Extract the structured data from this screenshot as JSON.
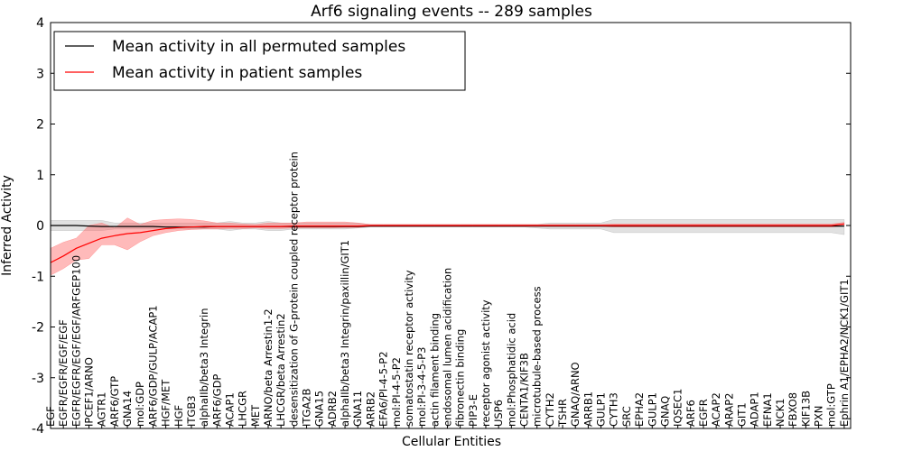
{
  "chart_data": {
    "type": "line",
    "title": "Arf6 signaling events -- 289 samples",
    "xlabel": "Cellular Entities",
    "ylabel": "Inferred Activity",
    "ylim": [
      -4,
      4
    ],
    "yticks": [
      -4,
      -3,
      -2,
      -1,
      0,
      1,
      2,
      3,
      4
    ],
    "legend": {
      "position": "top-left",
      "entries": [
        {
          "label": "Mean activity in all permuted samples",
          "color": "#000000"
        },
        {
          "label": "Mean activity in patient samples",
          "color": "#ff0000"
        }
      ]
    },
    "categories": [
      "EGF",
      "EGFR/EGFR/EGF/EGF",
      "EGFR/EGFR/EGF/EGF/ARFGEP100",
      "IPCEF1/ARNO",
      "AGTR1",
      "ARF6/GTP",
      "GNA14",
      "mol:GDP",
      "ARF6/GDP/GULP/ACAP1",
      "HGF/MET",
      "HGF",
      "ITGB3",
      "alphaIIb/beta3 Integrin",
      "ARF6/GDP",
      "ACAP1",
      "LHCGR",
      "MET",
      "ARNO/beta Arrestin1-2",
      "LHCGR/beta Arrestin2",
      "desensitization of G-protein coupled receptor protein",
      "ITGA2B",
      "GNA15",
      "ADRB2",
      "alphaIIb/beta3 Integrin/paxillin/GIT1",
      "GNA11",
      "ARRB2",
      "EFA6/PI-4-5-P2",
      "mol:PI-4-5-P2",
      "somatostatin receptor activity",
      "mol:PI-3-4-5-P3",
      "actin filament binding",
      "endosomal lumen acidification",
      "fibronectin binding",
      "PIP3-E",
      "receptor agonist activity",
      "USP6",
      "mol:Phosphatidic acid",
      "CENTA1/KIF3B",
      "microtubule-based process",
      "CYTH2",
      "TSHR",
      "GNAQ/ARNO",
      "ARRB1",
      "GULP1",
      "CYTH3",
      "SRC",
      "EPHA2",
      "GULP1",
      "GNAQ",
      "IQSEC1",
      "ARF6",
      "EGFR",
      "ACAP2",
      "ARAP2",
      "GIT1",
      "ADAP1",
      "EFNA1",
      "NCK1",
      "FBXO8",
      "KIF13B",
      "PXN",
      "mol:GTP",
      "Ephrin A1/EPHA2/NCK1/GIT1"
    ],
    "series": [
      {
        "name": "Mean activity in all permuted samples",
        "color": "#000000",
        "band_color": "#aaaaaa",
        "x": [
          0,
          2,
          4,
          6,
          8,
          10,
          12,
          14,
          16,
          18,
          20,
          22,
          24,
          26,
          28,
          30,
          32,
          34,
          36,
          38,
          40,
          42,
          44,
          46,
          48,
          50,
          52,
          54,
          56,
          58,
          60,
          62,
          64,
          66,
          68,
          70,
          72,
          74,
          76,
          78,
          80,
          82,
          84,
          86,
          88,
          90,
          92,
          94,
          96,
          98,
          100,
          102,
          104,
          106,
          108,
          110,
          112,
          114,
          116,
          118,
          120,
          122,
          124
        ],
        "values": [
          0.0,
          0.0,
          0.0,
          -0.01,
          -0.02,
          -0.02,
          -0.02,
          -0.02,
          -0.02,
          -0.03,
          -0.03,
          -0.03,
          -0.03,
          -0.02,
          -0.02,
          -0.02,
          -0.02,
          -0.02,
          -0.02,
          -0.02,
          -0.02,
          -0.02,
          -0.02,
          -0.02,
          -0.02,
          -0.01,
          -0.01,
          -0.01,
          -0.01,
          -0.01,
          -0.01,
          -0.01,
          -0.01,
          -0.01,
          -0.01,
          -0.01,
          -0.01,
          -0.01,
          -0.01,
          -0.01,
          -0.01,
          -0.01,
          -0.01,
          -0.01,
          -0.01,
          -0.01,
          -0.01,
          -0.01,
          -0.01,
          -0.01,
          -0.01,
          -0.01,
          -0.01,
          -0.01,
          -0.01,
          -0.01,
          -0.01,
          -0.01,
          -0.01,
          -0.01,
          -0.01,
          -0.01,
          -0.01
        ],
        "upper": [
          0.1,
          0.1,
          0.1,
          0.1,
          0.1,
          0.05,
          0.05,
          0.05,
          0.05,
          0.05,
          0.05,
          0.05,
          0.05,
          0.05,
          0.08,
          0.05,
          0.05,
          0.08,
          0.05,
          0.05,
          0.05,
          0.05,
          0.05,
          0.05,
          0.05,
          0.02,
          0.02,
          0.02,
          0.02,
          0.02,
          0.02,
          0.02,
          0.02,
          0.02,
          0.02,
          0.02,
          0.02,
          0.02,
          0.02,
          0.05,
          0.05,
          0.05,
          0.05,
          0.05,
          0.12,
          0.12,
          0.12,
          0.12,
          0.12,
          0.12,
          0.12,
          0.12,
          0.12,
          0.12,
          0.12,
          0.12,
          0.12,
          0.12,
          0.12,
          0.12,
          0.12,
          0.12,
          0.12
        ],
        "lower": [
          -0.1,
          -0.1,
          -0.1,
          -0.1,
          -0.1,
          -0.07,
          -0.07,
          -0.07,
          -0.07,
          -0.07,
          -0.07,
          -0.07,
          -0.07,
          -0.07,
          -0.1,
          -0.07,
          -0.07,
          -0.1,
          -0.1,
          -0.07,
          -0.07,
          -0.07,
          -0.07,
          -0.07,
          -0.05,
          -0.03,
          -0.03,
          -0.03,
          -0.03,
          -0.03,
          -0.03,
          -0.03,
          -0.03,
          -0.03,
          -0.03,
          -0.03,
          -0.03,
          -0.03,
          -0.05,
          -0.07,
          -0.07,
          -0.07,
          -0.07,
          -0.07,
          -0.14,
          -0.14,
          -0.14,
          -0.14,
          -0.14,
          -0.14,
          -0.14,
          -0.14,
          -0.14,
          -0.14,
          -0.14,
          -0.14,
          -0.14,
          -0.14,
          -0.14,
          -0.14,
          -0.14,
          -0.14,
          -0.18
        ]
      },
      {
        "name": "Mean activity in patient samples",
        "color": "#ff0000",
        "band_color": "#ff6666",
        "x": [
          0,
          2,
          4,
          6,
          8,
          10,
          12,
          14,
          16,
          18,
          20,
          22,
          24,
          26,
          28,
          30,
          32,
          34,
          36,
          38,
          40,
          42,
          44,
          46,
          48,
          50,
          52,
          54,
          56,
          58,
          60,
          62,
          64,
          66,
          68,
          70,
          72,
          74,
          76,
          78,
          80,
          82,
          84,
          86,
          88,
          90,
          92,
          94,
          96,
          98,
          100,
          102,
          104,
          106,
          108,
          110,
          112,
          114,
          116,
          118,
          120,
          122,
          124
        ],
        "values": [
          -0.73,
          -0.6,
          -0.45,
          -0.35,
          -0.25,
          -0.2,
          -0.16,
          -0.14,
          -0.1,
          -0.06,
          -0.04,
          -0.03,
          -0.02,
          -0.02,
          -0.02,
          -0.02,
          -0.02,
          -0.02,
          -0.02,
          -0.01,
          -0.01,
          -0.01,
          -0.01,
          -0.01,
          -0.01,
          0.0,
          0.0,
          0.0,
          0.0,
          0.0,
          0.0,
          0.0,
          0.0,
          0.0,
          0.0,
          0.0,
          0.0,
          0.0,
          0.0,
          0.0,
          0.0,
          0.0,
          0.0,
          0.0,
          0.0,
          0.0,
          0.0,
          0.0,
          0.0,
          0.0,
          0.0,
          0.0,
          0.0,
          0.0,
          0.0,
          0.0,
          0.0,
          0.0,
          0.0,
          0.0,
          0.0,
          0.0,
          0.03
        ],
        "upper": [
          -0.45,
          -0.33,
          -0.25,
          0.0,
          0.05,
          -0.05,
          0.15,
          0.02,
          0.1,
          0.12,
          0.13,
          0.12,
          0.09,
          0.05,
          0.05,
          0.03,
          0.02,
          0.05,
          0.05,
          0.05,
          0.07,
          0.07,
          0.07,
          0.07,
          0.05,
          0.02,
          0.02,
          0.02,
          0.02,
          0.02,
          0.02,
          0.02,
          0.02,
          0.02,
          0.02,
          0.02,
          0.02,
          0.02,
          0.02,
          0.02,
          0.02,
          0.02,
          0.02,
          0.02,
          0.03,
          0.03,
          0.03,
          0.03,
          0.03,
          0.03,
          0.03,
          0.03,
          0.03,
          0.03,
          0.03,
          0.03,
          0.03,
          0.03,
          0.03,
          0.03,
          0.03,
          0.03,
          0.06
        ],
        "lower": [
          -0.98,
          -0.85,
          -0.68,
          -0.65,
          -0.38,
          -0.38,
          -0.48,
          -0.32,
          -0.2,
          -0.14,
          -0.1,
          -0.08,
          -0.07,
          -0.07,
          -0.06,
          -0.06,
          -0.05,
          -0.06,
          -0.06,
          -0.05,
          -0.05,
          -0.05,
          -0.05,
          -0.04,
          -0.04,
          -0.02,
          -0.02,
          -0.02,
          -0.02,
          -0.02,
          -0.02,
          -0.02,
          -0.02,
          -0.02,
          -0.02,
          -0.02,
          -0.02,
          -0.02,
          -0.02,
          -0.02,
          -0.02,
          -0.02,
          -0.02,
          -0.02,
          -0.03,
          -0.03,
          -0.03,
          -0.03,
          -0.03,
          -0.03,
          -0.03,
          -0.03,
          -0.03,
          -0.03,
          -0.03,
          -0.03,
          -0.03,
          -0.03,
          -0.03,
          -0.03,
          -0.03,
          -0.03,
          -0.01
        ]
      }
    ]
  }
}
